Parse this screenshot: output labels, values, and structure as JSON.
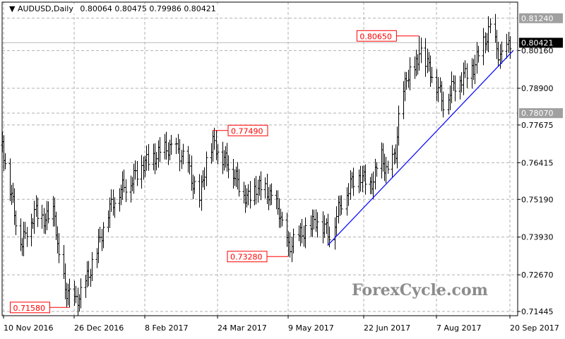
{
  "header": {
    "symbol": "AUDUSD,Daily",
    "ohlc": "0.80064 0.80475 0.79986 0.80421"
  },
  "watermark": "ForexCycle.com",
  "chart_data": {
    "type": "ohlc-bar",
    "title": "AUDUSD,Daily",
    "ylim": [
      0.71445,
      0.8124
    ],
    "y_ticks": [
      0.71445,
      0.7267,
      0.7393,
      0.7519,
      0.76415,
      0.77675,
      0.789,
      0.8016
    ],
    "x_ticks": [
      {
        "date": "2016-11-10",
        "label": "10 Nov 2016"
      },
      {
        "date": "2016-12-26",
        "label": "26 Dec 2016"
      },
      {
        "date": "2017-02-08",
        "label": "8 Feb 2017"
      },
      {
        "date": "2017-03-24",
        "label": "24 Mar 2017"
      },
      {
        "date": "2017-05-09",
        "label": "9 May 2017"
      },
      {
        "date": "2017-06-22",
        "label": "22 Jun 2017"
      },
      {
        "date": "2017-08-07",
        "label": "7 Aug 2017"
      },
      {
        "date": "2017-09-20",
        "label": "20 Sep 2017"
      }
    ],
    "grid": true,
    "price_path": [
      [
        "2016-11-09",
        0.77
      ],
      [
        "2016-11-14",
        0.756
      ],
      [
        "2016-11-18",
        0.745
      ],
      [
        "2016-11-22",
        0.737
      ],
      [
        "2016-11-25",
        0.742
      ],
      [
        "2016-12-01",
        0.748
      ],
      [
        "2016-12-07",
        0.745
      ],
      [
        "2016-12-13",
        0.748
      ],
      [
        "2016-12-15",
        0.735
      ],
      [
        "2016-12-20",
        0.722
      ],
      [
        "2016-12-26",
        0.7175
      ],
      [
        "2016-12-30",
        0.72
      ],
      [
        "2017-01-04",
        0.727
      ],
      [
        "2017-01-09",
        0.735
      ],
      [
        "2017-01-16",
        0.748
      ],
      [
        "2017-01-23",
        0.755
      ],
      [
        "2017-01-30",
        0.758
      ],
      [
        "2017-02-07",
        0.764
      ],
      [
        "2017-02-14",
        0.766
      ],
      [
        "2017-02-21",
        0.769
      ],
      [
        "2017-02-28",
        0.768
      ],
      [
        "2017-03-06",
        0.763
      ],
      [
        "2017-03-09",
        0.757
      ],
      [
        "2017-03-13",
        0.752
      ],
      [
        "2017-03-17",
        0.765
      ],
      [
        "2017-03-21",
        0.771
      ],
      [
        "2017-03-27",
        0.766
      ],
      [
        "2017-03-31",
        0.764
      ],
      [
        "2017-04-06",
        0.758
      ],
      [
        "2017-04-12",
        0.752
      ],
      [
        "2017-04-18",
        0.756
      ],
      [
        "2017-04-24",
        0.755
      ],
      [
        "2017-04-28",
        0.752
      ],
      [
        "2017-05-03",
        0.748
      ],
      [
        "2017-05-06",
        0.74
      ],
      [
        "2017-05-09",
        0.736
      ],
      [
        "2017-05-16",
        0.74
      ],
      [
        "2017-05-25",
        0.745
      ],
      [
        "2017-05-31",
        0.742
      ],
      [
        "2017-06-02",
        0.74
      ],
      [
        "2017-06-08",
        0.75
      ],
      [
        "2017-06-15",
        0.758
      ],
      [
        "2017-06-20",
        0.76
      ],
      [
        "2017-06-26",
        0.756
      ],
      [
        "2017-07-03",
        0.766
      ],
      [
        "2017-07-07",
        0.76
      ],
      [
        "2017-07-12",
        0.768
      ],
      [
        "2017-07-14",
        0.778
      ],
      [
        "2017-07-19",
        0.793
      ],
      [
        "2017-07-26",
        0.797
      ],
      [
        "2017-07-27",
        0.803
      ],
      [
        "2017-08-02",
        0.796
      ],
      [
        "2017-08-08",
        0.789
      ],
      [
        "2017-08-11",
        0.784
      ],
      [
        "2017-08-17",
        0.79
      ],
      [
        "2017-08-23",
        0.793
      ],
      [
        "2017-08-29",
        0.796
      ],
      [
        "2017-09-01",
        0.8
      ],
      [
        "2017-09-08",
        0.809
      ],
      [
        "2017-09-12",
        0.802
      ],
      [
        "2017-09-15",
        0.799
      ],
      [
        "2017-09-20",
        0.80421
      ]
    ],
    "annotations": [
      {
        "date": "2016-12-23",
        "value": 0.7158,
        "label": "0.71580",
        "kind": "low"
      },
      {
        "date": "2017-03-21",
        "value": 0.7749,
        "label": "0.77490",
        "kind": "high"
      },
      {
        "date": "2017-05-09",
        "value": 0.7328,
        "label": "0.73280",
        "kind": "low"
      },
      {
        "date": "2017-07-27",
        "value": 0.8065,
        "label": "0.80650",
        "kind": "high"
      },
      {
        "date": "2017-09-08",
        "value": 0.8124,
        "kind": "high"
      }
    ],
    "trendline": {
      "from": [
        "2017-06-01",
        0.7365
      ],
      "to": [
        "2017-09-22",
        0.8016
      ],
      "color": "#0000ff"
    },
    "level_labels": [
      {
        "value": 0.8124,
        "label": "0.81240",
        "color": "#a0a0a0"
      },
      {
        "value": 0.80421,
        "label": "0.80421",
        "color": "#000000"
      },
      {
        "value": 0.7807,
        "label": "0.78070",
        "color": "#a0a0a0"
      }
    ],
    "colors": {
      "bars": "#000000",
      "annotation": "#ff0000",
      "grid": "#b0b0b0"
    }
  }
}
